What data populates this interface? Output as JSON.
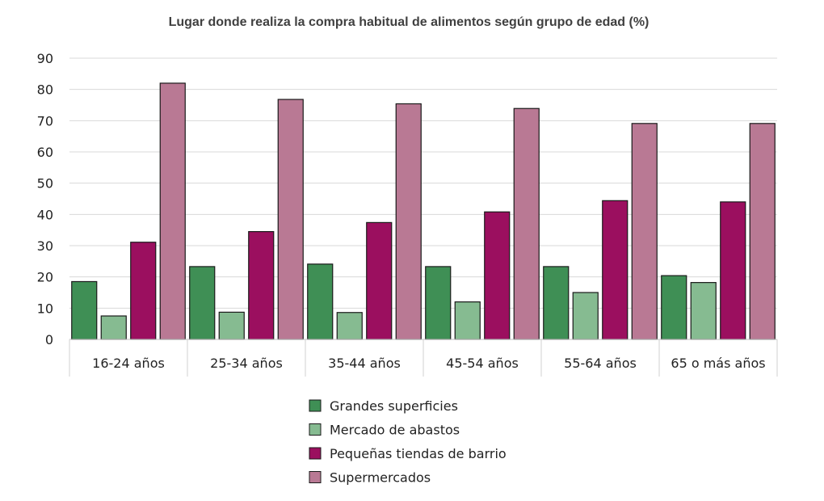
{
  "chart_data": {
    "type": "bar",
    "title": "Lugar donde realiza la compra habitual de alimentos según grupo de edad (%)",
    "xlabel": "",
    "ylabel": "",
    "ylim": [
      0,
      90
    ],
    "yticks": [
      0,
      10,
      20,
      30,
      40,
      50,
      60,
      70,
      80,
      90
    ],
    "grid": true,
    "legend_position": "bottom",
    "categories": [
      "16-24 años",
      "25-34 años",
      "35-44 años",
      "45-54 años",
      "55-64 años",
      "65 o más años"
    ],
    "series": [
      {
        "name": "Grandes superficies",
        "color": "#3f8f55",
        "values": [
          18.5,
          23.3,
          24.1,
          23.3,
          23.3,
          20.4
        ]
      },
      {
        "name": "Mercado de abastos",
        "color": "#86bb91",
        "values": [
          7.5,
          8.7,
          8.6,
          12.0,
          15.0,
          18.2
        ]
      },
      {
        "name": "Pequeñas tiendas de barrio",
        "color": "#9b0f5f",
        "values": [
          31.1,
          34.5,
          37.4,
          40.8,
          44.4,
          44.0
        ]
      },
      {
        "name": "Supermercados",
        "color": "#b97994",
        "values": [
          82.0,
          76.8,
          75.4,
          73.9,
          69.1,
          69.1
        ]
      }
    ]
  }
}
